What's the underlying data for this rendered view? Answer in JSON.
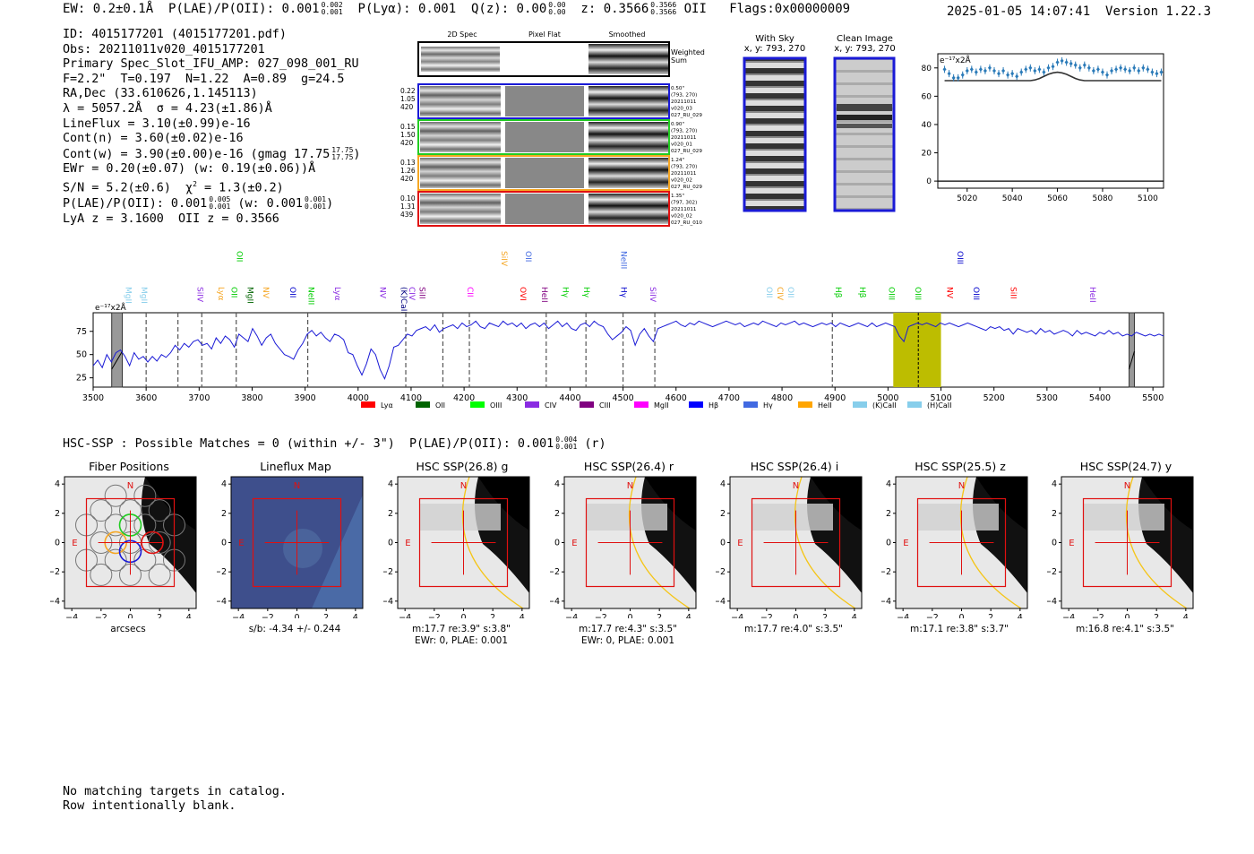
{
  "header": {
    "ew": "EW: 0.2±0.1Å",
    "plae_label": "P(LAE)/P(OII): 0.001",
    "plae_hi": "0.002",
    "plae_lo": "0.001",
    "plya": "P(Lyα): 0.001",
    "qz_label": "Q(z): 0.00",
    "qz_hi": "0.00",
    "qz_lo": "0.00",
    "z_label": "z: 0.3566",
    "z_hi": "0.3566",
    "z_lo": "0.3566",
    "z_line": "OII",
    "flags": "Flags:0x00000009",
    "datetime": "2025-01-05 14:07:41",
    "version": "Version 1.22.3"
  },
  "info": {
    "id": "ID: 4015177201 (4015177201.pdf)",
    "obs": "Obs: 20211011v020_4015177201",
    "primary": "Primary Spec_Slot_IFU_AMP: 027_098_001_RU",
    "params": "F=2.2\"  T=0.197  N=1.22  A=0.89  g=24.5",
    "radec": "RA,Dec (33.610626,1.145113)",
    "lambda": "λ = 5057.2Å  σ = 4.23(±1.86)Å",
    "lineflux": "LineFlux = 3.10(±0.99)e-16",
    "contn": "Cont(n) = 3.60(±0.02)e-16",
    "contw": "Cont(w) = 3.90(±0.00)e-16 (gmag 17.75",
    "contw_hi": "17.75",
    "contw_lo": "17.75",
    "ewr": "EWr = 0.20(±0.07) (w: 0.19(±0.06))Å",
    "sn": "S/N = 5.2(±0.6)  χ",
    "chi": "= 1.3(±0.2)",
    "plae2": "P(LAE)/P(OII): 0.001",
    "plae2_hi": "0.005",
    "plae2_lo": "0.001",
    "plae2_w": "(w: 0.001",
    "plae2_w_hi": "0.001",
    "plae2_w_lo": "0.001",
    "lyaz": "LyA z = 3.1600  OII z = 0.3566"
  },
  "cutouts": {
    "col_2d": "2D Spec",
    "col_flat": "Pixel Flat",
    "col_smooth": "Smoothed",
    "weighted": "Weighted",
    "sum": "Sum",
    "rows": [
      {
        "a": "0.22",
        "b": "1.05",
        "c": "420",
        "d1": "0.50\"",
        "d2": "(793, 270)",
        "d3": "20211011",
        "d4": "v020_03",
        "d5": "027_RU_029",
        "color": "#1a1ad6"
      },
      {
        "a": "0.15",
        "b": "1.50",
        "c": "420",
        "d1": "0.90\"",
        "d2": "(793, 270)",
        "d3": "20211011",
        "d4": "v020_01",
        "d5": "027_RU_029",
        "color": "#22cc22"
      },
      {
        "a": "0.13",
        "b": "1.26",
        "c": "420",
        "d1": "1.24\"",
        "d2": "(793, 270)",
        "d3": "20211011",
        "d4": "v020_02",
        "d5": "027_RU_029",
        "color": "#f5a623"
      },
      {
        "a": "0.10",
        "b": "1.31",
        "c": "439",
        "d1": "1.35\"",
        "d2": "(797, 302)",
        "d3": "20211011",
        "d4": "v020_02",
        "d5": "027_RU_010",
        "color": "#e01010"
      }
    ]
  },
  "sky": {
    "with_sky": "With Sky",
    "with_sky_xy": "x, y: 793, 270",
    "clean": "Clean Image",
    "clean_xy": "x, y: 793, 270"
  },
  "zoom_chart": {
    "unit": "e⁻¹⁷x2Å",
    "xticks": [
      "5020",
      "5040",
      "5060",
      "5080",
      "5100"
    ],
    "yticks": [
      "0",
      "20",
      "40",
      "60",
      "80"
    ]
  },
  "chart_data": [
    {
      "type": "scatter",
      "title": "",
      "xlabel": "",
      "ylabel": "e-17 x2A",
      "xlim": [
        5007,
        5107
      ],
      "ylim": [
        -5,
        90
      ],
      "x": [
        5010,
        5012,
        5014,
        5016,
        5018,
        5020,
        5022,
        5024,
        5026,
        5028,
        5030,
        5032,
        5034,
        5036,
        5038,
        5040,
        5042,
        5044,
        5046,
        5048,
        5050,
        5052,
        5054,
        5056,
        5058,
        5060,
        5062,
        5064,
        5066,
        5068,
        5070,
        5072,
        5074,
        5076,
        5078,
        5080,
        5082,
        5084,
        5086,
        5088,
        5090,
        5092,
        5094,
        5096,
        5098,
        5100,
        5102,
        5104,
        5106
      ],
      "values": [
        79,
        76,
        73,
        73,
        75,
        78,
        79,
        77,
        79,
        78,
        80,
        78,
        76,
        78,
        75,
        76,
        74,
        77,
        79,
        80,
        78,
        79,
        77,
        80,
        81,
        84,
        85,
        84,
        83,
        82,
        80,
        82,
        80,
        78,
        79,
        77,
        75,
        78,
        79,
        80,
        79,
        78,
        80,
        78,
        80,
        79,
        77,
        76,
        77
      ],
      "model": [
        71,
        71,
        71,
        71,
        71,
        71,
        71,
        71,
        71,
        71,
        71,
        71,
        71,
        71,
        71,
        71,
        71,
        71,
        71,
        71,
        71.5,
        72.5,
        74,
        75.5,
        76.5,
        77,
        76.5,
        75.5,
        74,
        72.5,
        71.5,
        71,
        71,
        71,
        71,
        71,
        71,
        71,
        71,
        71,
        71,
        71,
        71,
        71,
        71,
        71,
        71,
        71,
        71
      ]
    },
    {
      "type": "line",
      "title": "",
      "xlabel": "",
      "ylabel": "e-17 x2A",
      "xlim": [
        3500,
        5520
      ],
      "ylim": [
        15,
        95
      ],
      "yticks": [
        25,
        50,
        75
      ],
      "xticks": [
        3500,
        3600,
        3700,
        3800,
        3900,
        4000,
        4100,
        4200,
        4300,
        4400,
        4500,
        4600,
        4700,
        4800,
        4900,
        5000,
        5100,
        5200,
        5300,
        5400,
        5500
      ],
      "highlight": [
        5010,
        5100
      ],
      "center": 5057.2,
      "masked": [
        [
          3535,
          3555
        ],
        [
          5455,
          5465
        ]
      ],
      "dashed": [
        3600,
        3660,
        3705,
        3770,
        3905,
        4090,
        4160,
        4210,
        4355,
        4430,
        4500,
        4560,
        4895
      ],
      "y": [
        38,
        44,
        36,
        50,
        42,
        52,
        55,
        48,
        38,
        52,
        45,
        48,
        42,
        48,
        43,
        50,
        47,
        52,
        60,
        55,
        62,
        58,
        64,
        66,
        60,
        62,
        56,
        68,
        62,
        70,
        66,
        58,
        72,
        68,
        64,
        78,
        70,
        60,
        68,
        72,
        62,
        56,
        50,
        48,
        45,
        55,
        62,
        72,
        76,
        70,
        74,
        68,
        64,
        72,
        70,
        66,
        52,
        50,
        38,
        28,
        40,
        56,
        50,
        34,
        24,
        38,
        58,
        60,
        66,
        72,
        70,
        76,
        78,
        80,
        76,
        82,
        74,
        78,
        80,
        82,
        78,
        84,
        80,
        82,
        86,
        80,
        78,
        84,
        82,
        80,
        86,
        82,
        84,
        80,
        84,
        78,
        82,
        84,
        80,
        84,
        78,
        82,
        86,
        80,
        84,
        78,
        76,
        82,
        84,
        80,
        86,
        82,
        80,
        72,
        66,
        70,
        74,
        80,
        76,
        60,
        72,
        78,
        70,
        64,
        78,
        80,
        82,
        84,
        86,
        82,
        80,
        84,
        82,
        86,
        84,
        82,
        80,
        82,
        84,
        86,
        84,
        82,
        84,
        80,
        82,
        84,
        82,
        86,
        84,
        82,
        80,
        84,
        82,
        84,
        86,
        82,
        84,
        82,
        80,
        82,
        84,
        82,
        84,
        80,
        84,
        82,
        80,
        82,
        84,
        82,
        80,
        84,
        80,
        82,
        84,
        82,
        80,
        70,
        64,
        80,
        82,
        84,
        82,
        84,
        82,
        80,
        84,
        82,
        84,
        82,
        80,
        82,
        84,
        82,
        80,
        78,
        76,
        80,
        78,
        80,
        76,
        78,
        72,
        78,
        76,
        74,
        76,
        72,
        78,
        74,
        76,
        72,
        74,
        76,
        74,
        70,
        76,
        72,
        74,
        72,
        70,
        74,
        72,
        76,
        72,
        74,
        70,
        72,
        70,
        74,
        72,
        70,
        72,
        70,
        72,
        70
      ],
      "lines_top": [
        "OII",
        "SiIV",
        "OII",
        "NeIII",
        "OIII"
      ],
      "lines_mid": [
        "MgII",
        "MgII",
        "SiIV",
        "Lyα",
        "OII",
        "MgII",
        "NV",
        "OII",
        "NeIII",
        "Lyα",
        "NV",
        "(K)CaII",
        "CIV",
        "SiII",
        "CII",
        "OVI",
        "HeII",
        "Hγ",
        "Hγ",
        "Hγ",
        "SiIV",
        "OII",
        "CIV",
        "OII",
        "Hβ",
        "Hβ",
        "OIII",
        "OIII",
        "NV",
        "OIII",
        "SiII",
        "HeII"
      ],
      "legend": [
        "Lyα",
        "OII",
        "OIII",
        "CIV",
        "CIII",
        "MgII",
        "Hβ",
        "Hγ",
        "HeII",
        "(K)CaII",
        "(H)CaII"
      ]
    }
  ],
  "legend_colors": [
    "#ff0000",
    "#006400",
    "#00ff00",
    "#8a2be2",
    "#800080",
    "#ff00ff",
    "#0000ff",
    "#4169e1",
    "#ffa500",
    "#87ceeb",
    "#87ceeb"
  ],
  "hsc": {
    "summary": "HSC-SSP : Possible Matches = 0 (within +/- 3\")  P(LAE)/P(OII): 0.001",
    "summary_hi": "0.004",
    "summary_lo": "0.001",
    "summary_band": "(r)",
    "panels": [
      {
        "title": "Fiber Positions",
        "cap1": "arcsecs",
        "cap2": ""
      },
      {
        "title": "Lineflux Map",
        "cap1": "s/b: -4.34 +/- 0.244",
        "cap2": ""
      },
      {
        "title": "HSC SSP(26.8) g",
        "cap1": "m:17.7  re:3.9\"  s:3.8\"",
        "cap2": "EWr: 0, PLAE: 0.001"
      },
      {
        "title": "HSC SSP(26.4) r",
        "cap1": "m:17.7  re:4.3\"  s:3.5\"",
        "cap2": "EWr: 0, PLAE: 0.001"
      },
      {
        "title": "HSC SSP(26.4) i",
        "cap1": "m:17.7  re:4.0\"  s:3.5\"",
        "cap2": ""
      },
      {
        "title": "HSC SSP(25.5) z",
        "cap1": "m:17.1  re:3.8\"  s:3.7\"",
        "cap2": ""
      },
      {
        "title": "HSC SSP(24.7) y",
        "cap1": "m:16.8  re:4.1\"  s:3.5\"",
        "cap2": ""
      }
    ],
    "n_label": "N",
    "e_label": "E",
    "ticks": [
      "−4",
      "−2",
      "0",
      "2",
      "4"
    ]
  },
  "footer": {
    "line1": "No matching targets in catalog.",
    "line2": "Row intentionally blank."
  }
}
